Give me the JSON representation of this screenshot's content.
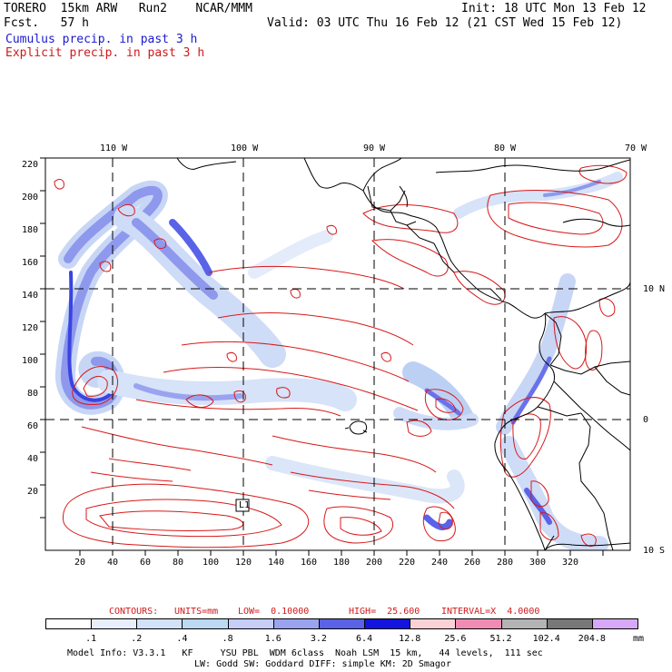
{
  "header": {
    "model": "TORERO  15km ARW   Run2    NCAR/MMM",
    "init": "Init: 18 UTC Mon 13 Feb 12",
    "fcst": "Fcst.   57 h",
    "valid": "Valid: 03 UTC Thu 16 Feb 12 (21 CST Wed 15 Feb 12)",
    "cumulus": "Cumulus precip. in past 3 h",
    "explicit": "Explicit precip. in past 3 h"
  },
  "axes": {
    "lon_labels": [
      "110 W",
      "100 W",
      "90 W",
      "80 W",
      "70 W"
    ],
    "lat_labels": [
      "10 N",
      "0",
      "10 S"
    ],
    "y_ticks": [
      "220",
      "200",
      "180",
      "160",
      "140",
      "120",
      "100",
      "80",
      "60",
      "40",
      "20"
    ],
    "x_ticks": [
      "20",
      "40",
      "60",
      "80",
      "100",
      "120",
      "140",
      "160",
      "180",
      "200",
      "220",
      "240",
      "260",
      "280",
      "300",
      "320"
    ]
  },
  "marker_label": "L1",
  "contours": {
    "label": "CONTOURS:",
    "units": "UNITS=mm",
    "low": "LOW=  0.10000",
    "high": "HIGH=  25.600",
    "interval": "INTERVAL=X  4.0000"
  },
  "colorbar": {
    "unit": "mm",
    "labels": [
      ".1",
      ".2",
      ".4",
      ".8",
      "1.6",
      "3.2",
      "6.4",
      "12.8",
      "25.6",
      "51.2",
      "102.4",
      "204.8"
    ],
    "colors": [
      "#ffffff",
      "#e8eefc",
      "#d2e2f8",
      "#bcd8f2",
      "#c6cdf7",
      "#9aa3f0",
      "#5a62e8",
      "#1414e0",
      "#fad2d6",
      "#f08cb4",
      "#b4b4b4",
      "#787878",
      "#d8a8f8"
    ]
  },
  "footer": {
    "line1": "Model Info: V3.3.1   KF     YSU PBL  WDM 6class  Noah LSM  15 km,   44 levels,  111 sec",
    "line2": "LW: Godd SW: Goddard DIFF: simple KM: 2D Smagor"
  }
}
